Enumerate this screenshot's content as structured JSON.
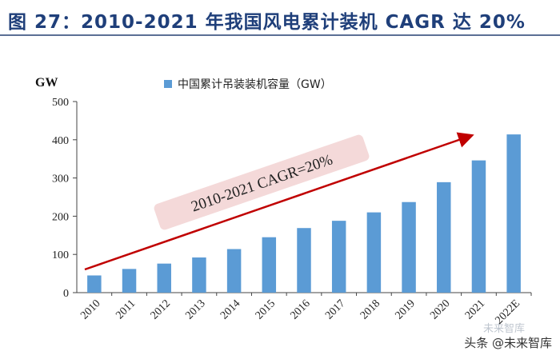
{
  "header": {
    "title": "图 27：2010-2021 年我国风电累计装机 CAGR 达 20%"
  },
  "chart_data": {
    "type": "bar",
    "title": "图 27：2010-2021 年我国风电累计装机 CAGR 达 20%",
    "ylabel": "GW",
    "xlabel": "",
    "ylim": [
      0,
      500
    ],
    "yticks": [
      "0",
      "100",
      "200",
      "300",
      "400",
      "500"
    ],
    "categories": [
      "2010",
      "2011",
      "2012",
      "2013",
      "2014",
      "2015",
      "2016",
      "2017",
      "2018",
      "2019",
      "2020",
      "2021",
      "2022E"
    ],
    "series": [
      {
        "name": "中国累计吊装装机容量（GW）",
        "values": [
          45,
          62,
          76,
          92,
          114,
          145,
          169,
          188,
          210,
          237,
          289,
          346,
          414
        ]
      }
    ],
    "legend": "top-left",
    "annotation": "2010-2021 CAGR=20%",
    "colors": {
      "bar": "#5b9bd5",
      "arrow": "#c00000",
      "annotation_bg": "#f4d9d9"
    }
  },
  "watermark": {
    "label": "头条 @未来智库",
    "faded": "未来智库"
  }
}
